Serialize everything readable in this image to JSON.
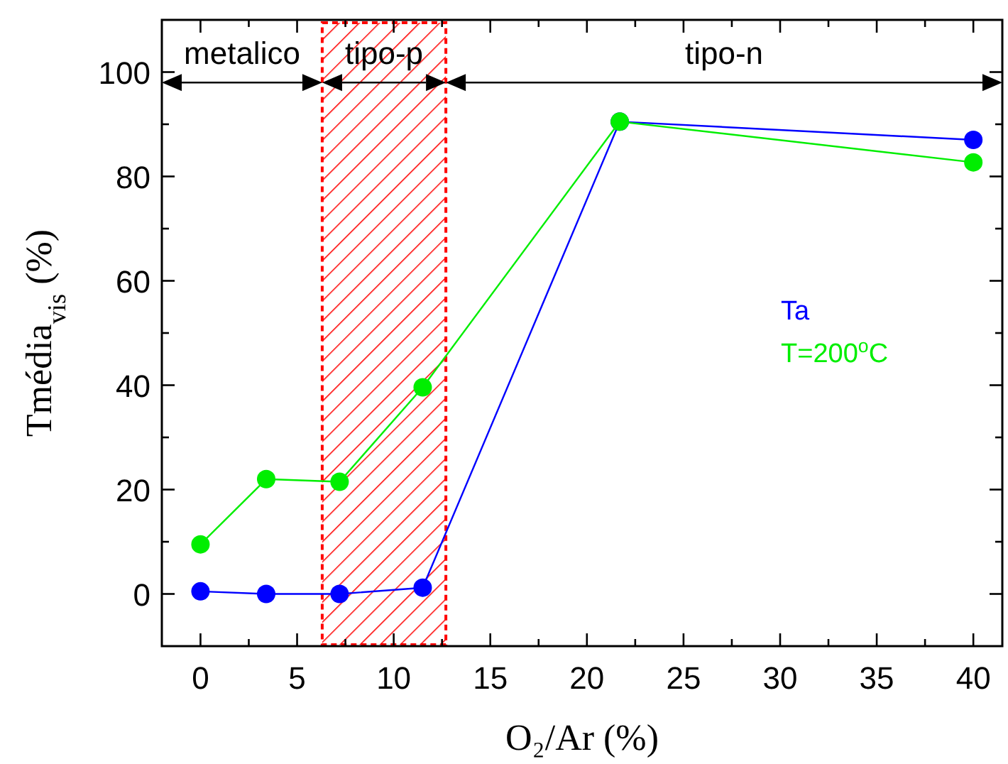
{
  "chart_data": {
    "type": "line",
    "xlabel": "O₂/Ar (%)",
    "ylabel": "Tmédia$_{vis}$ (%)",
    "xlim": [
      -2,
      41.5
    ],
    "ylim": [
      -10,
      110
    ],
    "xticks": [
      0,
      {
        "value": 2.5,
        "label": null
      },
      5,
      {
        "value": 7.5,
        "label": null
      },
      10,
      {
        "value": 12.5,
        "label": null
      },
      15,
      {
        "value": 17.5,
        "label": null
      },
      20,
      {
        "value": 22.5,
        "label": null
      },
      25,
      {
        "value": 27.5,
        "label": null
      },
      30,
      {
        "value": 32.5,
        "label": null
      },
      35,
      {
        "value": 37.5,
        "label": null
      },
      40
    ],
    "yticks": [
      0,
      {
        "value": 10,
        "label": null
      },
      20,
      {
        "value": 30,
        "label": null
      },
      40,
      {
        "value": 50,
        "label": null
      },
      60,
      {
        "value": 70,
        "label": null
      },
      80,
      {
        "value": 90,
        "label": null
      },
      100
    ],
    "marker": "circle",
    "legend": "right",
    "series": [
      {
        "name": "Ta",
        "color": "#0000ff",
        "x": [
          0,
          3.4,
          7.2,
          11.5,
          21.7,
          40
        ],
        "values": [
          0.5,
          0,
          0,
          1.2,
          90.5,
          87
        ]
      },
      {
        "name": "T=200$^{o}$C",
        "color": "#00ee00",
        "x": [
          0,
          3.4,
          7.2,
          11.5,
          21.7,
          40
        ],
        "values": [
          9.5,
          22,
          21.5,
          39.6,
          90.5,
          82.7
        ]
      }
    ],
    "bands": [
      {
        "axis": "x",
        "from": 6.3,
        "to": 12.7,
        "color": "#ff0000"
      }
    ],
    "annotations": [
      "metalico",
      "tipo-p",
      "tipo-n"
    ]
  }
}
